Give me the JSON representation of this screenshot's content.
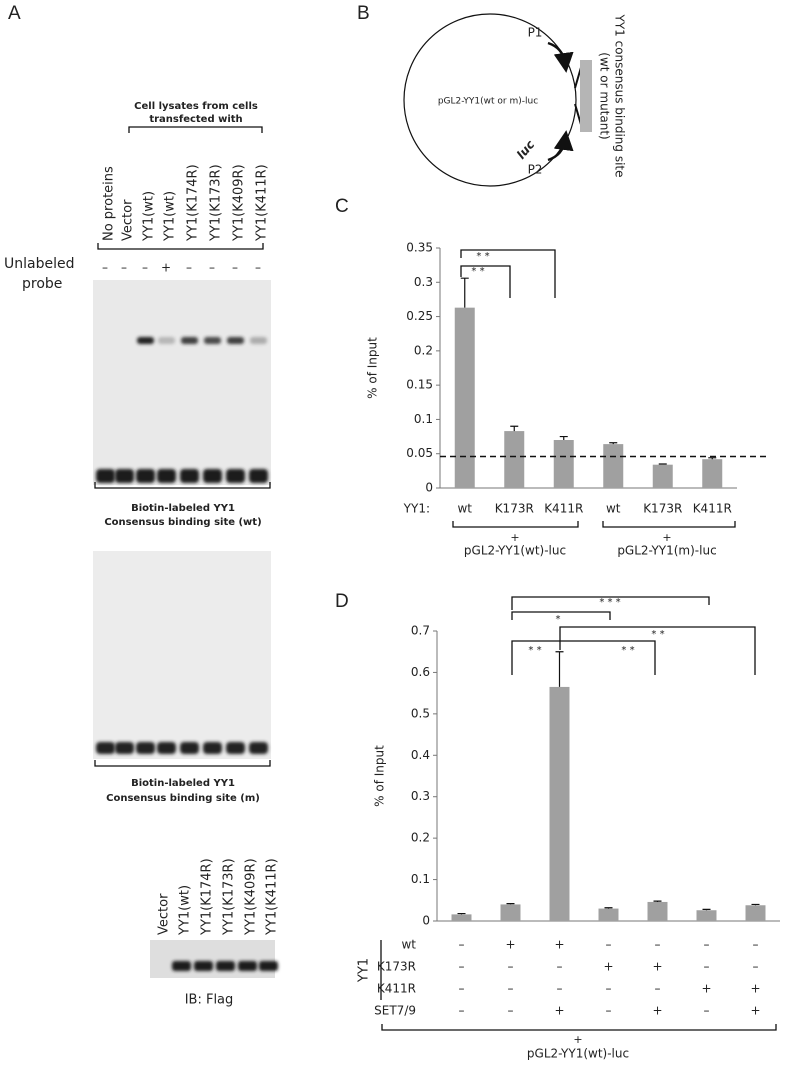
{
  "panel_a": {
    "letter": "A",
    "header": [
      "Cell lysates from cells",
      "transfected with"
    ],
    "lanes": [
      "No proteins",
      "Vector",
      "YY1(wt)",
      "YY1(wt)",
      "YY1(K174R)",
      "YY1(K173R)",
      "YY1(K409R)",
      "YY1(K411R)"
    ],
    "probe_label": [
      "Unlabeled",
      "probe"
    ],
    "probe_signs": [
      "–",
      "–",
      "–",
      "+",
      "–",
      "–",
      "–",
      "–"
    ],
    "gel_wt_caption": [
      "Biotin-labeled YY1",
      "Consensus binding site (wt)"
    ],
    "gel_m_caption": [
      "Biotin-labeled YY1",
      "Consensus binding site (m)"
    ],
    "western_lanes": [
      "Vector",
      "YY1(wt)",
      "YY1(K174R)",
      "YY1(K173R)",
      "YY1(K409R)",
      "YY1(K411R)"
    ],
    "western_caption": "IB: Flag"
  },
  "panel_b": {
    "letter": "B",
    "plasmid": "pGL2-YY1(wt or m)-luc",
    "p1": "P1",
    "p2": "P2",
    "luc": "luc",
    "site": [
      "YY1 consensus binding site",
      "(wt or mutant)"
    ]
  },
  "chart_data": [
    {
      "type": "bar",
      "panel_letter": "C",
      "ylabel": "% of Input",
      "category_label": "YY1:",
      "categories": [
        "wt",
        "K173R",
        "K411R",
        "wt",
        "K173R",
        "K411R"
      ],
      "values": [
        0.263,
        0.083,
        0.07,
        0.064,
        0.034,
        0.042
      ],
      "errors": [
        0.043,
        0.007,
        0.005,
        0.002,
        0.001,
        0.002
      ],
      "color": "#a0a0a0",
      "reference_line": 0.046,
      "ylim": [
        0,
        0.35
      ],
      "yticks": [
        0,
        0.05,
        0.1,
        0.15,
        0.2,
        0.25,
        0.3,
        0.35
      ],
      "significance": [
        "* *",
        "* *"
      ],
      "groups": [
        {
          "sign": "+",
          "label": "pGL2-YY1(wt)-luc"
        },
        {
          "sign": "+",
          "label": "pGL2-YY1(m)-luc"
        }
      ]
    },
    {
      "type": "bar",
      "panel_letter": "D",
      "ylabel": "% of Input",
      "values": [
        0.016,
        0.04,
        0.565,
        0.03,
        0.046,
        0.026,
        0.038
      ],
      "errors": [
        0.002,
        0.002,
        0.085,
        0.002,
        0.002,
        0.002,
        0.002
      ],
      "color": "#a0a0a0",
      "ylim": [
        0,
        0.7
      ],
      "yticks": [
        0,
        0.1,
        0.2,
        0.3,
        0.4,
        0.5,
        0.6,
        0.7
      ],
      "significance": [
        "* * *",
        "*",
        "* *",
        "* *",
        "* *"
      ],
      "condition_group": "YY1",
      "conditions": [
        {
          "name": "wt",
          "signs": [
            "–",
            "+",
            "+",
            "–",
            "–",
            "–",
            "–"
          ]
        },
        {
          "name": "K173R",
          "signs": [
            "–",
            "–",
            "–",
            "+",
            "+",
            "–",
            "–"
          ]
        },
        {
          "name": "K411R",
          "signs": [
            "–",
            "–",
            "–",
            "–",
            "–",
            "+",
            "+"
          ]
        },
        {
          "name": "SET7/9",
          "signs": [
            "–",
            "–",
            "+",
            "–",
            "+",
            "–",
            "+"
          ]
        }
      ],
      "groups": [
        {
          "sign": "+",
          "label": "pGL2-YY1(wt)-luc"
        }
      ]
    }
  ]
}
